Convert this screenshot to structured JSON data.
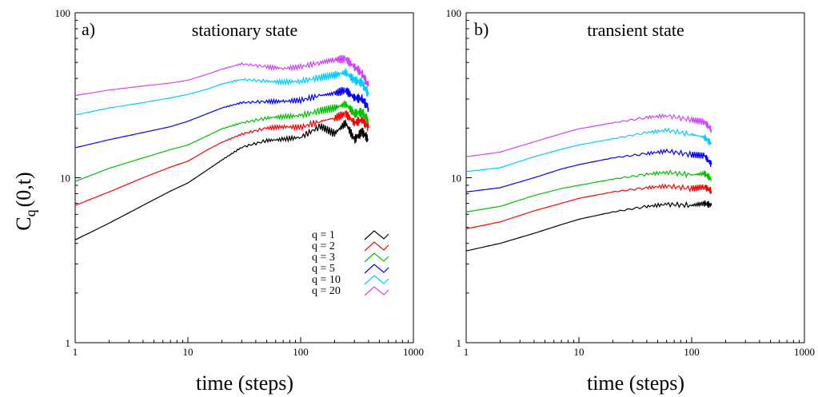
{
  "figure": {
    "ylabel_main": "C",
    "ylabel_sub": "q",
    "ylabel_rest": "(0,t)"
  },
  "chart_data": [
    {
      "type": "line",
      "panel": "a)",
      "title": "stationary state",
      "xlabel": "time (steps)",
      "xscale": "log",
      "yscale": "log",
      "xlim": [
        1,
        1000
      ],
      "ylim": [
        1,
        100
      ],
      "xticks": [
        "1",
        "10",
        "100",
        "1000"
      ],
      "yticks": [
        "1",
        "10",
        "100"
      ],
      "grid": false,
      "legend": "bottom-right",
      "series": [
        {
          "name": "q = 1",
          "color": "#000000",
          "x": [
            1,
            2,
            4,
            7,
            10,
            15,
            20,
            30,
            50,
            70,
            100,
            150,
            200,
            250,
            300,
            350,
            400
          ],
          "y": [
            4.2,
            5.3,
            6.8,
            8.3,
            9.3,
            11.2,
            12.8,
            15.3,
            16.8,
            17.1,
            17.6,
            20.5,
            18.5,
            21.5,
            17.0,
            19.0,
            17.0
          ]
        },
        {
          "name": "q = 2",
          "color": "#ff0000",
          "x": [
            1,
            2,
            4,
            7,
            10,
            15,
            20,
            30,
            50,
            70,
            100,
            150,
            200,
            250,
            300,
            350,
            400
          ],
          "y": [
            6.8,
            8.2,
            10.0,
            11.6,
            12.6,
            14.8,
            16.4,
            18.4,
            20.0,
            20.4,
            20.2,
            22.0,
            23.0,
            24.5,
            21.5,
            22.5,
            20.0
          ]
        },
        {
          "name": "q = 3",
          "color": "#00c000",
          "x": [
            1,
            2,
            4,
            7,
            10,
            15,
            20,
            30,
            50,
            70,
            100,
            150,
            200,
            250,
            300,
            350,
            400
          ],
          "y": [
            9.5,
            11.4,
            13.2,
            14.8,
            15.8,
            18.0,
            19.8,
            21.5,
            23.0,
            23.5,
            23.8,
            25.5,
            26.5,
            28.0,
            24.5,
            25.0,
            22.0
          ]
        },
        {
          "name": "q = 5",
          "color": "#0000ff",
          "x": [
            1,
            2,
            4,
            7,
            10,
            15,
            20,
            30,
            50,
            70,
            100,
            150,
            200,
            250,
            300,
            350,
            400
          ],
          "y": [
            15.2,
            17.0,
            18.8,
            20.4,
            22.0,
            24.5,
            26.5,
            28.5,
            29.0,
            29.0,
            29.5,
            31.5,
            32.5,
            34.0,
            30.5,
            30.0,
            26.5
          ]
        },
        {
          "name": "q = 10",
          "color": "#00ccff",
          "x": [
            1,
            2,
            4,
            7,
            10,
            15,
            20,
            30,
            50,
            70,
            100,
            150,
            200,
            250,
            300,
            350,
            400
          ],
          "y": [
            24.0,
            26.5,
            28.5,
            30.5,
            32.0,
            34.5,
            37.0,
            39.5,
            38.5,
            38.0,
            38.5,
            40.5,
            42.0,
            43.5,
            39.0,
            37.5,
            32.0
          ]
        },
        {
          "name": "q = 20",
          "color": "#cc44ff",
          "x": [
            1,
            2,
            4,
            7,
            10,
            15,
            20,
            30,
            50,
            70,
            100,
            150,
            200,
            250,
            300,
            350,
            400
          ],
          "y": [
            31.5,
            34.0,
            36.0,
            37.5,
            39.0,
            42.5,
            45.5,
            49.0,
            47.0,
            46.0,
            47.0,
            50.0,
            52.0,
            52.5,
            47.0,
            43.0,
            36.0
          ]
        }
      ]
    },
    {
      "type": "line",
      "panel": "b)",
      "title": "transient state",
      "xlabel": "time (steps)",
      "xscale": "log",
      "yscale": "log",
      "xlim": [
        1,
        1000
      ],
      "ylim": [
        1,
        100
      ],
      "xticks": [
        "1",
        "10",
        "100",
        "1000"
      ],
      "yticks": [
        "1",
        "10",
        "100"
      ],
      "grid": false,
      "series": [
        {
          "name": "q = 1",
          "color": "#000000",
          "x": [
            1,
            2,
            4,
            7,
            10,
            20,
            40,
            60,
            100,
            130,
            150
          ],
          "y": [
            3.6,
            4.0,
            4.6,
            5.2,
            5.6,
            6.2,
            6.7,
            6.9,
            6.8,
            7.0,
            6.8
          ]
        },
        {
          "name": "q = 2",
          "color": "#ff0000",
          "x": [
            1,
            2,
            4,
            7,
            10,
            20,
            40,
            60,
            100,
            130,
            150
          ],
          "y": [
            4.9,
            5.4,
            6.3,
            7.0,
            7.5,
            8.2,
            8.7,
            8.9,
            8.6,
            8.8,
            8.3
          ]
        },
        {
          "name": "q = 3",
          "color": "#00c000",
          "x": [
            1,
            2,
            4,
            7,
            10,
            20,
            40,
            60,
            100,
            130,
            150
          ],
          "y": [
            6.2,
            6.7,
            7.8,
            8.6,
            9.0,
            9.8,
            10.5,
            10.8,
            10.4,
            10.6,
            9.8
          ]
        },
        {
          "name": "q = 5",
          "color": "#0000ff",
          "x": [
            1,
            2,
            4,
            7,
            10,
            20,
            40,
            60,
            100,
            130,
            150
          ],
          "y": [
            8.2,
            8.7,
            10.0,
            11.3,
            12.0,
            13.2,
            14.0,
            14.5,
            13.8,
            13.6,
            12.0
          ]
        },
        {
          "name": "q = 10",
          "color": "#00ccff",
          "x": [
            1,
            2,
            4,
            7,
            10,
            20,
            40,
            60,
            100,
            130,
            150
          ],
          "y": [
            10.9,
            11.5,
            13.4,
            14.9,
            15.8,
            17.2,
            18.8,
            19.4,
            18.3,
            17.6,
            16.0
          ]
        },
        {
          "name": "q = 20",
          "color": "#cc44ff",
          "x": [
            1,
            2,
            4,
            7,
            10,
            20,
            40,
            60,
            100,
            130,
            150
          ],
          "y": [
            13.4,
            14.3,
            16.5,
            18.5,
            19.8,
            21.5,
            23.2,
            23.8,
            22.4,
            21.8,
            19.5
          ]
        }
      ]
    }
  ]
}
